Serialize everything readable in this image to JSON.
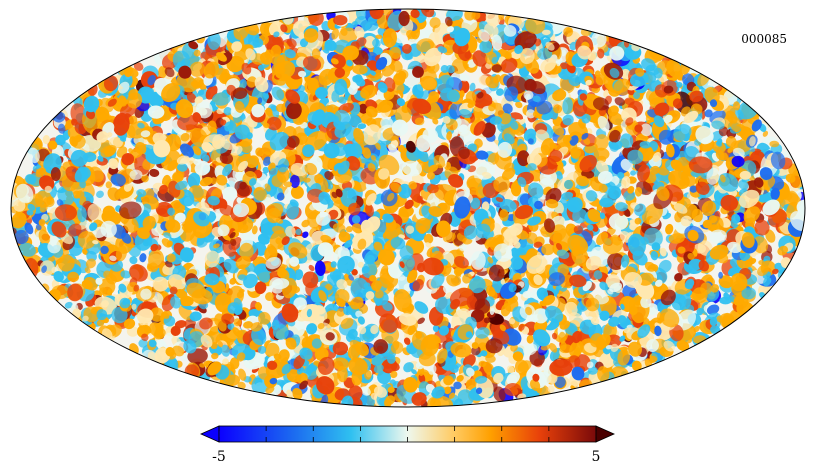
{
  "map": {
    "id_label": "000085",
    "projection": "mollweide"
  },
  "chart_data": {
    "type": "heatmap",
    "title": "",
    "colorbar": {
      "min": -5,
      "max": 5,
      "min_label": "-5",
      "max_label": "5",
      "extend": "both",
      "colormap": [
        "#0b00ff",
        "#1c6cf0",
        "#2fc0f0",
        "#e8f8f4",
        "#ffe8b0",
        "#ffaa00",
        "#e8410a",
        "#9b1a0a",
        "#500000"
      ]
    }
  }
}
